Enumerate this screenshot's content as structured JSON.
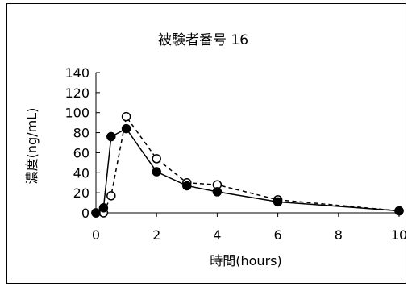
{
  "chart_data": {
    "type": "line",
    "title": "被験者番号 16",
    "xlabel": "時間(hours)",
    "ylabel": "濃度(ng/mL)",
    "xlim": [
      0,
      10
    ],
    "ylim": [
      0,
      140
    ],
    "xticks": [
      0,
      2,
      4,
      6,
      8,
      10
    ],
    "yticks": [
      0,
      20,
      40,
      60,
      80,
      100,
      120,
      140
    ],
    "grid": false,
    "legend": "none",
    "series": [
      {
        "marker": "filled-circle",
        "line": "solid",
        "color": "#000000",
        "points": [
          [
            0,
            0
          ],
          [
            0.25,
            5
          ],
          [
            0.5,
            76
          ],
          [
            1,
            84
          ],
          [
            2,
            41
          ],
          [
            3,
            27
          ],
          [
            4,
            21
          ],
          [
            6,
            11
          ],
          [
            10,
            2
          ]
        ]
      },
      {
        "marker": "open-circle",
        "line": "dashed",
        "color": "#000000",
        "points": [
          [
            0,
            0
          ],
          [
            0.25,
            0
          ],
          [
            0.5,
            17
          ],
          [
            1,
            96
          ],
          [
            2,
            54
          ],
          [
            3,
            30
          ],
          [
            4,
            28
          ],
          [
            6,
            13
          ],
          [
            10,
            2
          ]
        ]
      }
    ]
  }
}
